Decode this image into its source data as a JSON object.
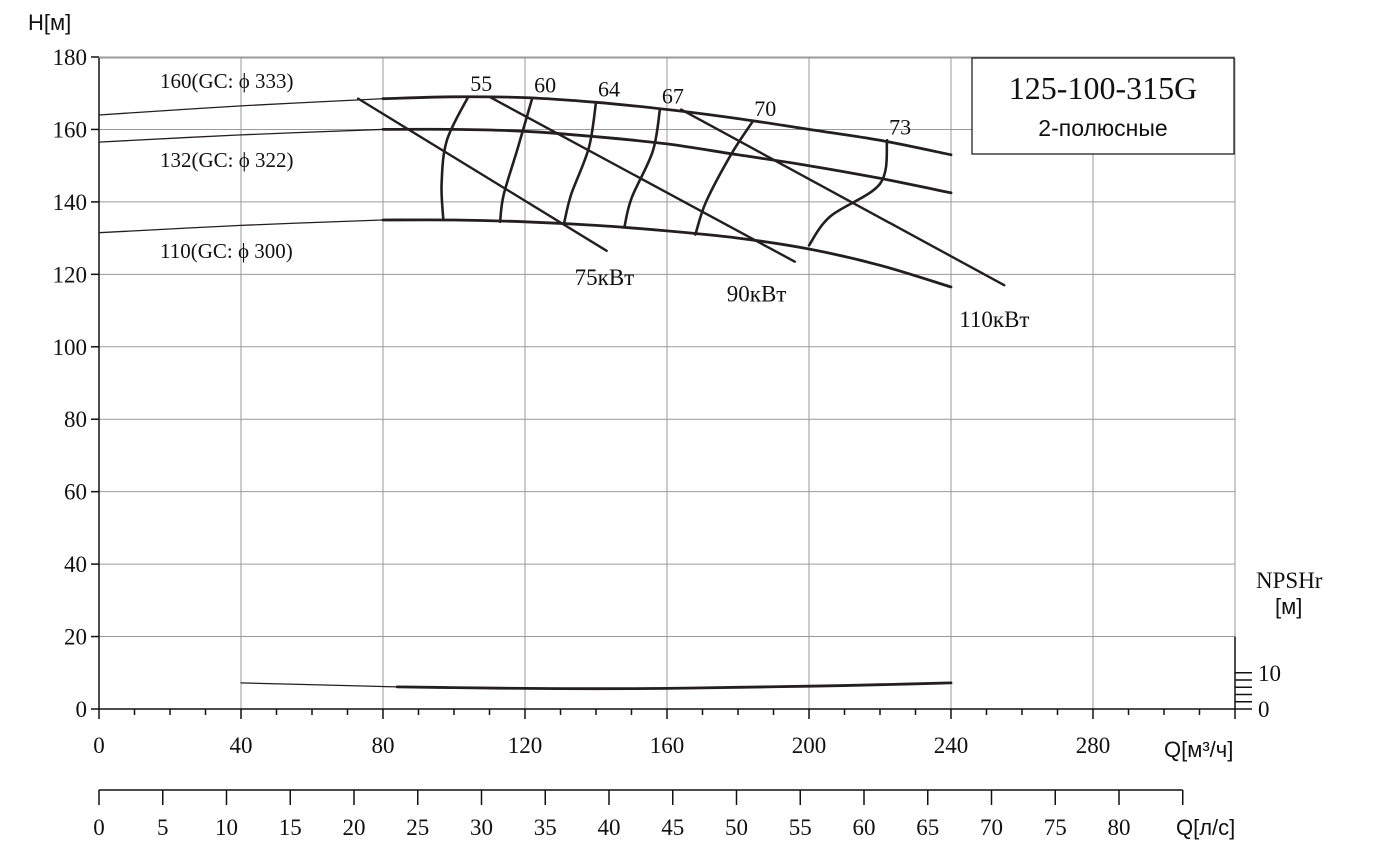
{
  "chart_data": {
    "type": "line",
    "title": "125-100-315G",
    "subtitle": "2-полюсные",
    "ylabel": "H[м]",
    "xlabel": "Q[м³/ч]",
    "x2label": "Q[л/с]",
    "y2label_top": "NPSHr",
    "y2label_unit": "[м]",
    "xlim": [
      0,
      320
    ],
    "ylim": [
      0,
      180
    ],
    "x_ticks": [
      0,
      40,
      80,
      120,
      160,
      200,
      240,
      280
    ],
    "y_ticks": [
      0,
      20,
      40,
      60,
      80,
      100,
      120,
      140,
      160,
      180
    ],
    "x2_ticks": [
      0,
      5,
      10,
      15,
      20,
      25,
      30,
      35,
      40,
      45,
      50,
      55,
      60,
      65,
      70,
      75,
      80
    ],
    "x2lim": [
      0,
      85
    ],
    "npsh_ticks": [
      {
        "value": 0,
        "label": "0"
      },
      {
        "value": 10,
        "label": "10"
      }
    ],
    "npsh_ylim": [
      0,
      20
    ],
    "grid": true,
    "head_curves": [
      {
        "label": "160(GC: ϕ 333)",
        "x": [
          0,
          40,
          80,
          100,
          120,
          140,
          160,
          180,
          200,
          220,
          240
        ],
        "y": [
          164,
          166.5,
          168.5,
          169,
          168.8,
          167.5,
          165.5,
          163,
          160,
          157,
          153
        ]
      },
      {
        "label": "132(GC: ϕ 322)",
        "x": [
          0,
          40,
          80,
          100,
          120,
          140,
          160,
          180,
          200,
          220,
          240
        ],
        "y": [
          156.5,
          158.5,
          160,
          160,
          159.5,
          158,
          156,
          153,
          150,
          146.5,
          142.5
        ]
      },
      {
        "label": "110(GC: ϕ 300)",
        "x": [
          0,
          40,
          80,
          100,
          120,
          140,
          160,
          180,
          200,
          220,
          240
        ],
        "y": [
          131.5,
          133.5,
          135,
          135,
          134.5,
          133.5,
          132,
          130,
          127,
          122.5,
          116.5
        ]
      }
    ],
    "efficiency_curves": [
      {
        "label": "55",
        "x": [
          104,
          98,
          96.5,
          97
        ],
        "y": [
          169,
          157,
          145,
          135
        ]
      },
      {
        "label": "60",
        "x": [
          122,
          118,
          114,
          113
        ],
        "y": [
          168.5,
          155,
          142,
          134.5
        ]
      },
      {
        "label": "64",
        "x": [
          140,
          138,
          133,
          131
        ],
        "y": [
          167.5,
          155,
          142,
          134
        ]
      },
      {
        "label": "67",
        "x": [
          158,
          156,
          150,
          148
        ],
        "y": [
          165.5,
          154,
          141,
          133
        ]
      },
      {
        "label": "70",
        "x": [
          184,
          178,
          171,
          168
        ],
        "y": [
          162,
          153,
          140,
          131
        ]
      },
      {
        "label": "73",
        "x": [
          222,
          220,
          206,
          200
        ],
        "y": [
          157,
          145,
          136,
          128
        ]
      }
    ],
    "power_lines": [
      {
        "label": "75кВт",
        "x": [
          73,
          143
        ],
        "y": [
          168.5,
          126.5
        ]
      },
      {
        "label": "90кВт",
        "x": [
          110,
          196
        ],
        "y": [
          169,
          123.5
        ]
      },
      {
        "label": "110кВт",
        "x": [
          164,
          255
        ],
        "y": [
          165.5,
          117
        ]
      }
    ],
    "npsh_curve": {
      "x": [
        40,
        84,
        100,
        120,
        140,
        160,
        180,
        200,
        220,
        240
      ],
      "y": [
        7.2,
        6.1,
        5.9,
        5.7,
        5.6,
        5.7,
        6.0,
        6.3,
        6.7,
        7.2
      ]
    }
  }
}
